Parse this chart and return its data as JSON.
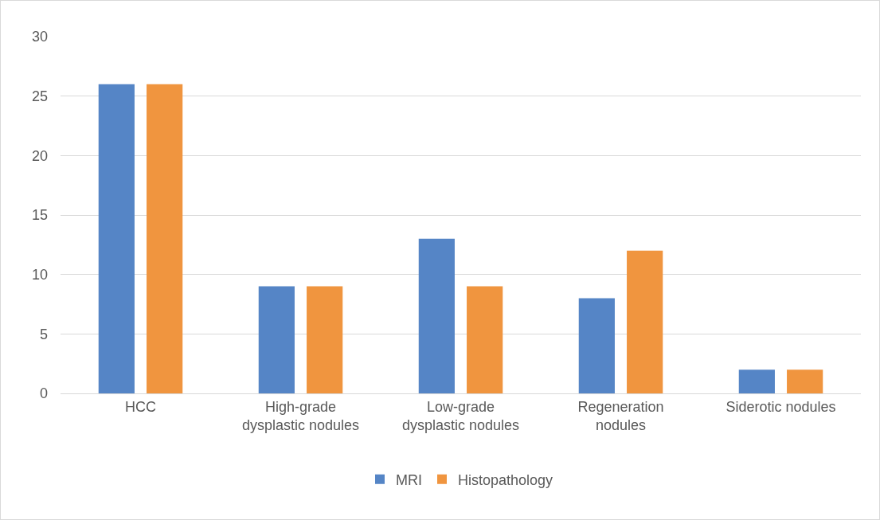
{
  "chart_data": {
    "type": "bar",
    "categories": [
      "HCC",
      "High-grade dysplastic nodules",
      "Low-grade dysplastic nodules",
      "Regeneration nodules",
      "Siderotic nodules"
    ],
    "series": [
      {
        "name": "MRI",
        "color": "#5585c6",
        "values": [
          26,
          9,
          13,
          8,
          2
        ]
      },
      {
        "name": "Histopathology",
        "color": "#f0953f",
        "values": [
          26,
          9,
          9,
          12,
          2
        ]
      }
    ],
    "ylim": [
      0,
      30
    ],
    "yticks": [
      0,
      5,
      10,
      15,
      20,
      25,
      30
    ],
    "grid": "y",
    "legend": "bottom"
  }
}
